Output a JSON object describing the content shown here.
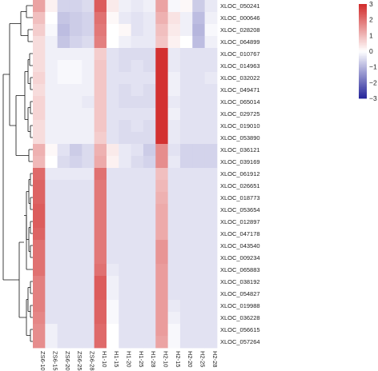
{
  "chart_data": {
    "type": "heatmap",
    "columns": [
      "ZS6-10",
      "ZS6-15",
      "ZS6-20",
      "ZS6-25",
      "ZS6-28",
      "H1-10",
      "H1-15",
      "H1-20",
      "H1-25",
      "H1-28",
      "H2-10",
      "H2-15",
      "H2-20",
      "H2-25",
      "H2-28"
    ],
    "rows": [
      "XLOC_050241",
      "XLOC_000646",
      "XLOC_028208",
      "XLOC_064899",
      "XLOC_010767",
      "XLOC_014963",
      "XLOC_032022",
      "XLOC_049471",
      "XLOC_065014",
      "XLOC_029725",
      "XLOC_019010",
      "XLOC_053890",
      "XLOC_036121",
      "XLOC_039169",
      "XLOC_061912",
      "XLOC_026651",
      "XLOC_018773",
      "XLOC_053654",
      "XLOC_012897",
      "XLOC_047178",
      "XLOC_043540",
      "XLOC_009234",
      "XLOC_065883",
      "XLOC_038192",
      "XLOC_054827",
      "XLOC_019988",
      "XLOC_036228",
      "XLOC_056615",
      "XLOC_057264"
    ],
    "values": [
      [
        1.3,
        0.2,
        -0.6,
        -0.6,
        -0.5,
        2.3,
        0.3,
        -0.2,
        -0.3,
        -0.2,
        1.3,
        -0.1,
        0.1,
        -0.7,
        -0.3
      ],
      [
        0.9,
        0.0,
        -0.8,
        -0.7,
        -0.6,
        2.0,
        0.1,
        -0.3,
        -0.4,
        -0.3,
        1.1,
        0.4,
        -0.2,
        -0.9,
        -0.2
      ],
      [
        0.7,
        -0.1,
        -0.9,
        -0.7,
        -0.6,
        1.9,
        0.0,
        0.1,
        -0.4,
        -0.3,
        0.9,
        0.3,
        -0.2,
        -1.0,
        -0.1
      ],
      [
        0.5,
        -0.2,
        -0.8,
        -0.6,
        -0.5,
        1.8,
        0.0,
        -0.2,
        -0.3,
        -0.3,
        0.8,
        0.2,
        0.0,
        -0.9,
        -0.2
      ],
      [
        0.5,
        -0.2,
        -0.2,
        -0.2,
        -0.2,
        0.7,
        -0.4,
        -0.5,
        -0.5,
        -0.5,
        2.9,
        -0.3,
        -0.4,
        -0.4,
        -0.4
      ],
      [
        0.5,
        -0.2,
        -0.1,
        -0.1,
        -0.2,
        0.8,
        -0.4,
        -0.5,
        -0.4,
        -0.5,
        2.9,
        -0.3,
        -0.4,
        -0.4,
        -0.4
      ],
      [
        0.6,
        -0.2,
        -0.1,
        -0.1,
        -0.2,
        0.8,
        -0.4,
        -0.4,
        -0.4,
        -0.4,
        2.9,
        -0.2,
        -0.4,
        -0.4,
        -0.3
      ],
      [
        0.5,
        -0.2,
        -0.2,
        -0.2,
        -0.2,
        0.8,
        -0.4,
        -0.5,
        -0.4,
        -0.5,
        2.9,
        -0.2,
        -0.4,
        -0.4,
        -0.4
      ],
      [
        0.6,
        -0.2,
        -0.2,
        -0.2,
        -0.3,
        0.8,
        -0.4,
        -0.5,
        -0.5,
        -0.5,
        2.9,
        -0.3,
        -0.4,
        -0.4,
        -0.4
      ],
      [
        0.6,
        -0.2,
        -0.2,
        -0.2,
        -0.2,
        0.8,
        -0.4,
        -0.4,
        -0.4,
        -0.4,
        2.9,
        -0.2,
        -0.4,
        -0.4,
        -0.4
      ],
      [
        0.5,
        -0.2,
        -0.2,
        -0.2,
        -0.2,
        0.8,
        -0.4,
        -0.5,
        -0.4,
        -0.5,
        2.9,
        -0.3,
        -0.4,
        -0.4,
        -0.4
      ],
      [
        0.5,
        -0.2,
        -0.2,
        -0.2,
        -0.2,
        0.7,
        -0.4,
        -0.5,
        -0.5,
        -0.5,
        2.9,
        -0.3,
        -0.4,
        -0.4,
        -0.4
      ],
      [
        1.1,
        0.1,
        -0.4,
        -0.7,
        -0.5,
        1.1,
        0.3,
        -0.3,
        -0.4,
        -0.7,
        1.6,
        -0.4,
        -0.6,
        -0.6,
        -0.6
      ],
      [
        1.0,
        0.0,
        -0.5,
        -0.6,
        -0.5,
        1.2,
        0.2,
        -0.3,
        -0.5,
        -0.6,
        1.6,
        -0.3,
        -0.6,
        -0.6,
        -0.6
      ],
      [
        2.1,
        -0.3,
        -0.3,
        -0.3,
        -0.3,
        2.0,
        -0.4,
        -0.4,
        -0.4,
        -0.4,
        0.9,
        -0.4,
        -0.4,
        -0.4,
        -0.4
      ],
      [
        2.2,
        -0.4,
        -0.4,
        -0.4,
        -0.4,
        1.9,
        -0.4,
        -0.4,
        -0.4,
        -0.4,
        1.0,
        -0.4,
        -0.4,
        -0.4,
        -0.4
      ],
      [
        2.2,
        -0.4,
        -0.4,
        -0.4,
        -0.4,
        1.9,
        -0.4,
        -0.4,
        -0.4,
        -0.4,
        1.1,
        -0.4,
        -0.4,
        -0.4,
        -0.4
      ],
      [
        2.3,
        -0.4,
        -0.4,
        -0.4,
        -0.4,
        1.9,
        -0.4,
        -0.4,
        -0.4,
        -0.4,
        1.2,
        -0.4,
        -0.4,
        -0.4,
        -0.4
      ],
      [
        2.3,
        -0.4,
        -0.4,
        -0.4,
        -0.4,
        1.9,
        -0.4,
        -0.4,
        -0.4,
        -0.4,
        1.2,
        -0.4,
        -0.4,
        -0.4,
        -0.4
      ],
      [
        2.2,
        -0.4,
        -0.4,
        -0.4,
        -0.4,
        1.9,
        -0.4,
        -0.4,
        -0.4,
        -0.4,
        1.2,
        -0.4,
        -0.4,
        -0.4,
        -0.4
      ],
      [
        2.0,
        -0.4,
        -0.4,
        -0.4,
        -0.4,
        1.9,
        -0.4,
        -0.4,
        -0.4,
        -0.4,
        1.5,
        -0.4,
        -0.4,
        -0.4,
        -0.4
      ],
      [
        2.0,
        -0.4,
        -0.4,
        -0.4,
        -0.4,
        1.9,
        -0.4,
        -0.4,
        -0.4,
        -0.4,
        1.5,
        -0.4,
        -0.4,
        -0.4,
        -0.4
      ],
      [
        2.0,
        -0.4,
        -0.4,
        -0.4,
        -0.4,
        2.0,
        -0.3,
        -0.4,
        -0.4,
        -0.4,
        1.4,
        -0.4,
        -0.4,
        -0.4,
        -0.4
      ],
      [
        1.8,
        -0.4,
        -0.4,
        -0.4,
        -0.4,
        2.3,
        -0.2,
        -0.4,
        -0.4,
        -0.4,
        1.4,
        -0.4,
        -0.4,
        -0.4,
        -0.4
      ],
      [
        1.8,
        -0.4,
        -0.4,
        -0.4,
        -0.4,
        2.3,
        -0.2,
        -0.4,
        -0.4,
        -0.4,
        1.4,
        -0.4,
        -0.4,
        -0.4,
        -0.4
      ],
      [
        1.8,
        -0.4,
        -0.4,
        -0.4,
        -0.4,
        2.2,
        -0.1,
        -0.4,
        -0.4,
        -0.4,
        1.4,
        -0.3,
        -0.4,
        -0.4,
        -0.4
      ],
      [
        1.7,
        -0.4,
        -0.4,
        -0.4,
        -0.4,
        2.2,
        -0.1,
        -0.4,
        -0.4,
        -0.4,
        1.4,
        -0.2,
        -0.4,
        -0.4,
        -0.4
      ],
      [
        1.6,
        -0.2,
        -0.4,
        -0.4,
        -0.4,
        2.1,
        0.0,
        -0.4,
        -0.4,
        -0.4,
        1.4,
        -0.1,
        -0.4,
        -0.4,
        -0.4
      ],
      [
        1.6,
        -0.2,
        -0.4,
        -0.4,
        -0.4,
        2.1,
        0.0,
        -0.4,
        -0.4,
        -0.4,
        1.3,
        -0.1,
        -0.4,
        -0.4,
        -0.4
      ]
    ],
    "color_scale": {
      "min": -3,
      "max": 3,
      "low": "#24249a",
      "mid": "#ffffff",
      "high": "#d12a2a"
    },
    "legend_ticks": [
      3,
      2,
      1,
      0,
      -1,
      -2,
      -3
    ],
    "legend_placement": "right",
    "dendrogram_placement": "left"
  }
}
